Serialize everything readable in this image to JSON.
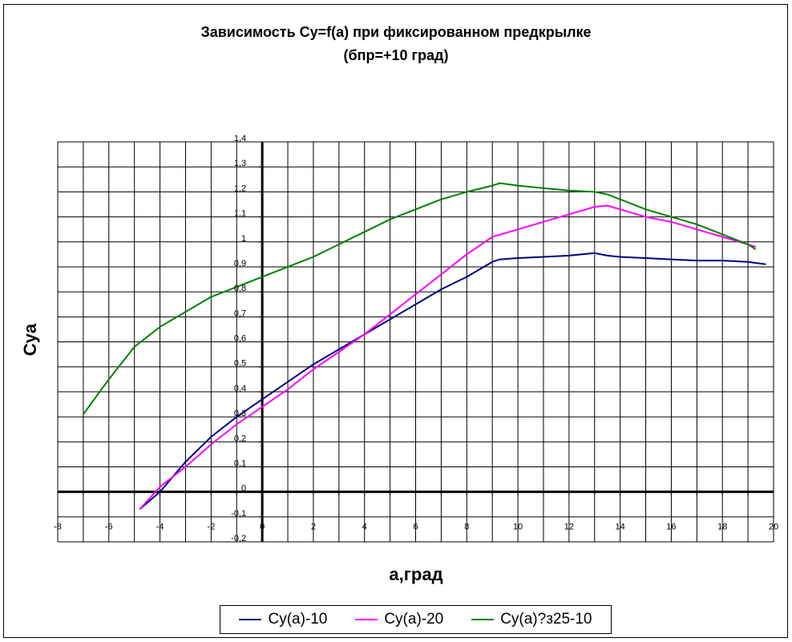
{
  "chart_data": {
    "type": "line",
    "title": "Зависимость Cy=f(a) при фиксированном предкрылке",
    "subtitle": "(бпр=+10 град)",
    "xlabel": "a,град",
    "ylabel": "Cya",
    "xlim": [
      -8,
      20
    ],
    "ylim": [
      -0.2,
      1.4
    ],
    "x_ticks": [
      "-8",
      "-6",
      "-4",
      "-2",
      "0",
      "2",
      "4",
      "6",
      "8",
      "10",
      "12",
      "14",
      "16",
      "18",
      "20"
    ],
    "y_ticks": [
      "-0,2",
      "-0,1",
      "0",
      "0,1",
      "0,2",
      "0,3",
      "0,4",
      "0,5",
      "0,6",
      "0,7",
      "0,8",
      "0,9",
      "1",
      "1,1",
      "1,2",
      "1,3",
      "1,4"
    ],
    "grid": true,
    "legend_position": "bottom",
    "series": [
      {
        "name": "Cy(a)-10",
        "color": "#000080",
        "points": [
          [
            -4.8,
            -0.07
          ],
          [
            -4,
            0
          ],
          [
            -3,
            0.12
          ],
          [
            -2,
            0.22
          ],
          [
            -1,
            0.3
          ],
          [
            0,
            0.37
          ],
          [
            1,
            0.44
          ],
          [
            2,
            0.51
          ],
          [
            3,
            0.57
          ],
          [
            4,
            0.63
          ],
          [
            5,
            0.69
          ],
          [
            6,
            0.75
          ],
          [
            7,
            0.81
          ],
          [
            8,
            0.86
          ],
          [
            9,
            0.92
          ],
          [
            9.3,
            0.93
          ],
          [
            10,
            0.935
          ],
          [
            11,
            0.94
          ],
          [
            12,
            0.945
          ],
          [
            13,
            0.955
          ],
          [
            13.5,
            0.945
          ],
          [
            14,
            0.94
          ],
          [
            15,
            0.935
          ],
          [
            16,
            0.93
          ],
          [
            17,
            0.925
          ],
          [
            18,
            0.925
          ],
          [
            19,
            0.92
          ],
          [
            19.7,
            0.91
          ]
        ]
      },
      {
        "name": "Cy(a)-20",
        "color": "#ff00ff",
        "points": [
          [
            -4.8,
            -0.07
          ],
          [
            -4,
            0.02
          ],
          [
            -3,
            0.1
          ],
          [
            -2,
            0.19
          ],
          [
            -1,
            0.27
          ],
          [
            0,
            0.34
          ],
          [
            1,
            0.41
          ],
          [
            2,
            0.49
          ],
          [
            3,
            0.56
          ],
          [
            4,
            0.63
          ],
          [
            5,
            0.71
          ],
          [
            6,
            0.79
          ],
          [
            7,
            0.87
          ],
          [
            8,
            0.95
          ],
          [
            9,
            1.02
          ],
          [
            10,
            1.05
          ],
          [
            11,
            1.08
          ],
          [
            12,
            1.11
          ],
          [
            13,
            1.14
          ],
          [
            13.5,
            1.145
          ],
          [
            14,
            1.13
          ],
          [
            15,
            1.1
          ],
          [
            16,
            1.08
          ],
          [
            17,
            1.05
          ],
          [
            18,
            1.02
          ],
          [
            19,
            0.99
          ],
          [
            19.3,
            0.98
          ]
        ]
      },
      {
        "name": "Cy(a)?з25-10",
        "color": "#008000",
        "points": [
          [
            -7,
            0.31
          ],
          [
            -6.5,
            0.38
          ],
          [
            -6,
            0.45
          ],
          [
            -5,
            0.58
          ],
          [
            -4,
            0.66
          ],
          [
            -3,
            0.72
          ],
          [
            -2,
            0.78
          ],
          [
            -1,
            0.82
          ],
          [
            0,
            0.86
          ],
          [
            1,
            0.9
          ],
          [
            2,
            0.94
          ],
          [
            3,
            0.99
          ],
          [
            4,
            1.04
          ],
          [
            5,
            1.09
          ],
          [
            6,
            1.13
          ],
          [
            7,
            1.17
          ],
          [
            8,
            1.2
          ],
          [
            9,
            1.225
          ],
          [
            9.3,
            1.235
          ],
          [
            10,
            1.225
          ],
          [
            11,
            1.215
          ],
          [
            12,
            1.205
          ],
          [
            13,
            1.2
          ],
          [
            13.5,
            1.19
          ],
          [
            14,
            1.17
          ],
          [
            15,
            1.13
          ],
          [
            16,
            1.1
          ],
          [
            17,
            1.07
          ],
          [
            18,
            1.03
          ],
          [
            19,
            0.99
          ],
          [
            19.3,
            0.97
          ]
        ]
      }
    ]
  }
}
